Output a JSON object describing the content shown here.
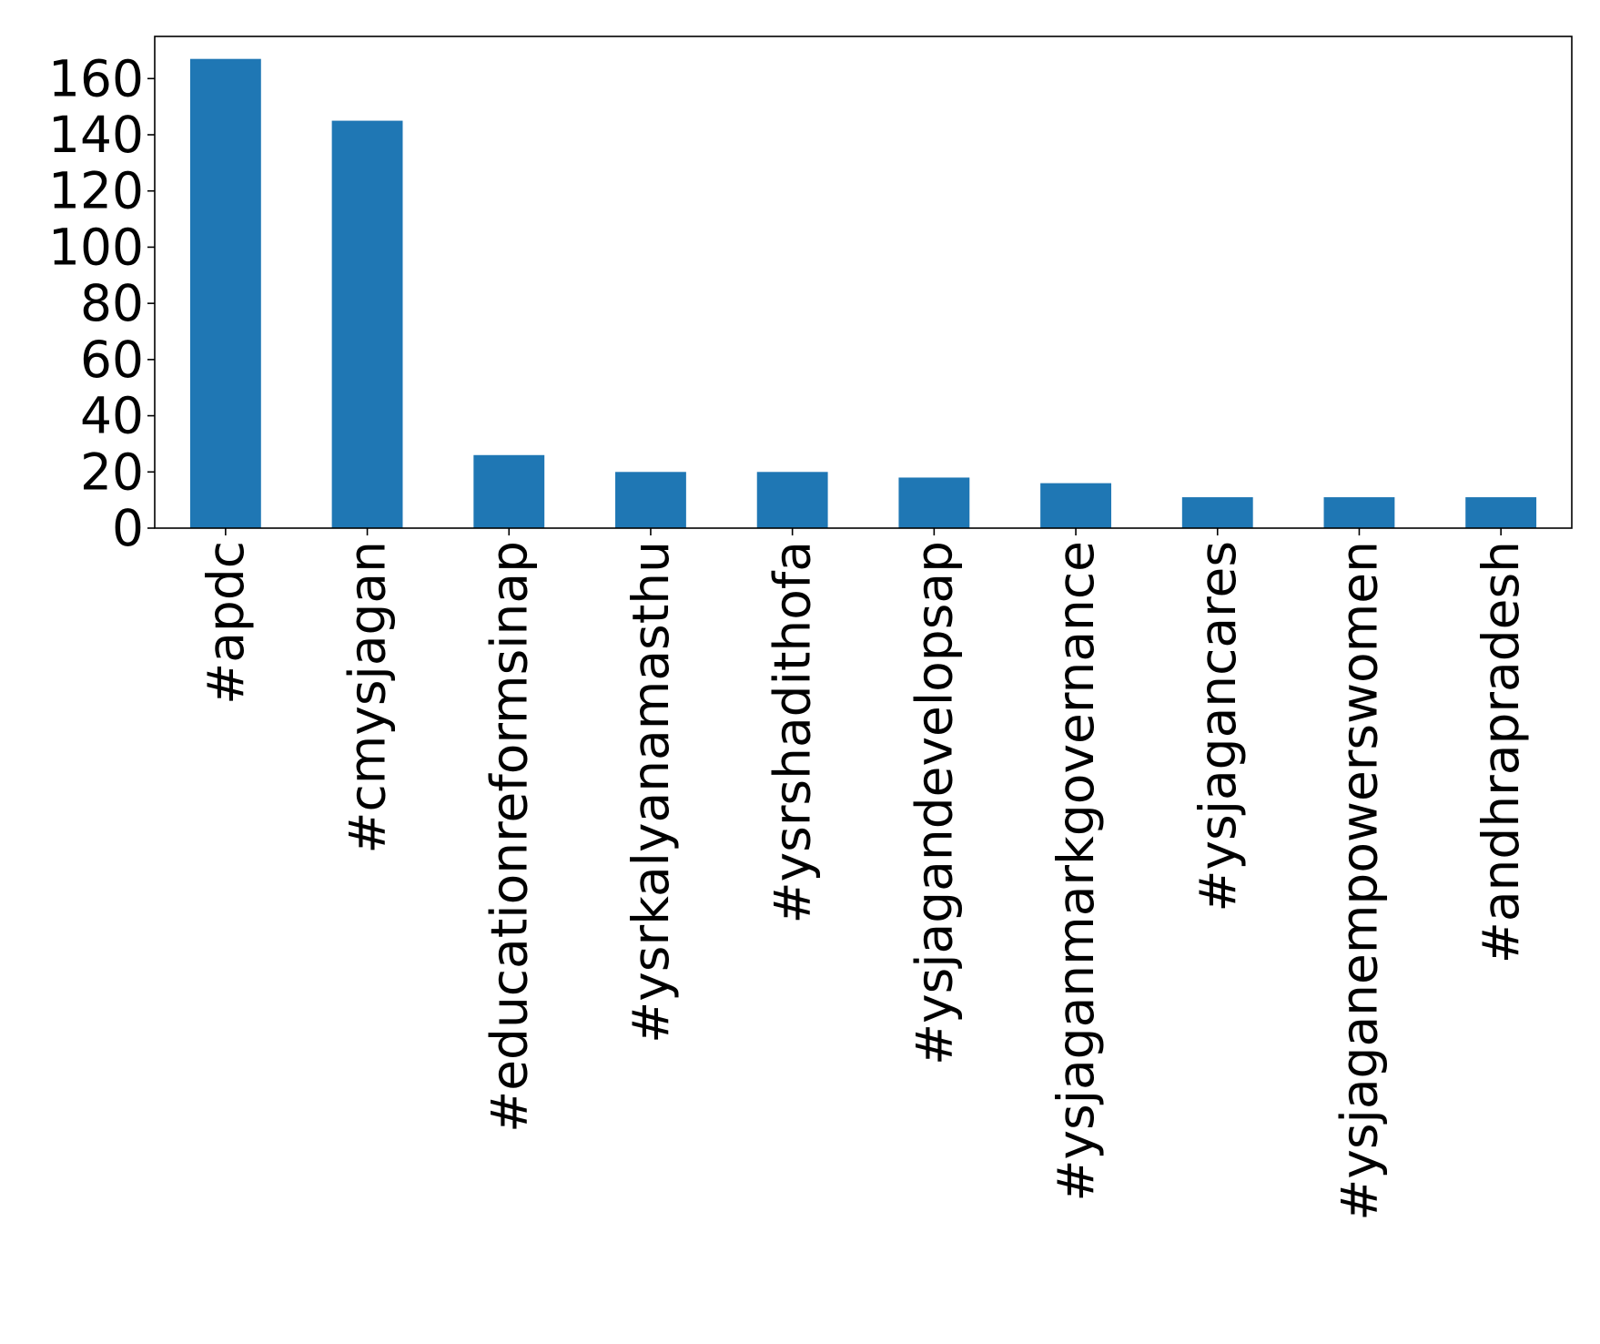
{
  "chart_data": {
    "type": "bar",
    "title": "",
    "xlabel": "",
    "ylabel": "",
    "categories": [
      "#apdc",
      "#cmysjagan",
      "#educationreformsinap",
      "#ysrkalyanamasthu",
      "#ysrshadithofa",
      "#ysjagandevelopsap",
      "#ysjaganmarkgovernance",
      "#ysjagancares",
      "#ysjaganempowerswomen",
      "#andhrapradesh"
    ],
    "values": [
      167,
      145,
      26,
      20,
      20,
      18,
      16,
      11,
      11,
      11
    ],
    "ylim": [
      0,
      175
    ],
    "yticks": [
      "0",
      "20",
      "40",
      "60",
      "80",
      "100",
      "120",
      "140",
      "160"
    ],
    "bar_color": "#1f77b4",
    "grid": false,
    "legend": "none"
  }
}
